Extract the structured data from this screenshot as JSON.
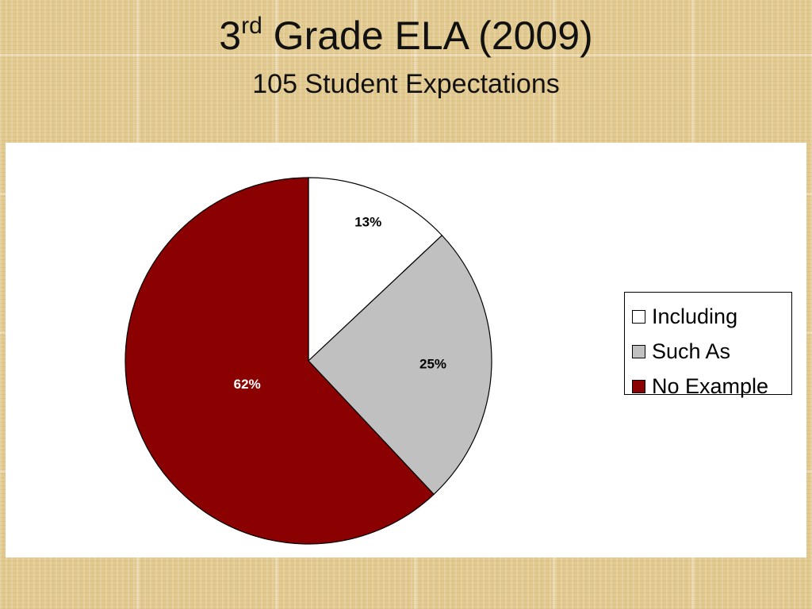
{
  "slide": {
    "title_main": "3",
    "title_sup": "rd",
    "title_rest": " Grade ELA (2009)",
    "subtitle": "105 Student Expectations"
  },
  "chart_data": {
    "type": "pie",
    "title": "3rd Grade ELA (2009)",
    "subtitle": "105 Student Expectations",
    "slices": [
      {
        "label": "Including",
        "value": 13,
        "display": "13%",
        "color": "#ffffff",
        "label_color": "#000000"
      },
      {
        "label": "Such As",
        "value": 25,
        "display": "25%",
        "color": "#c0c0c0",
        "label_color": "#000000"
      },
      {
        "label": "No Example",
        "value": 62,
        "display": "62%",
        "color": "#8b0000",
        "label_color": "#ffffff"
      }
    ],
    "legend_position": "right"
  }
}
